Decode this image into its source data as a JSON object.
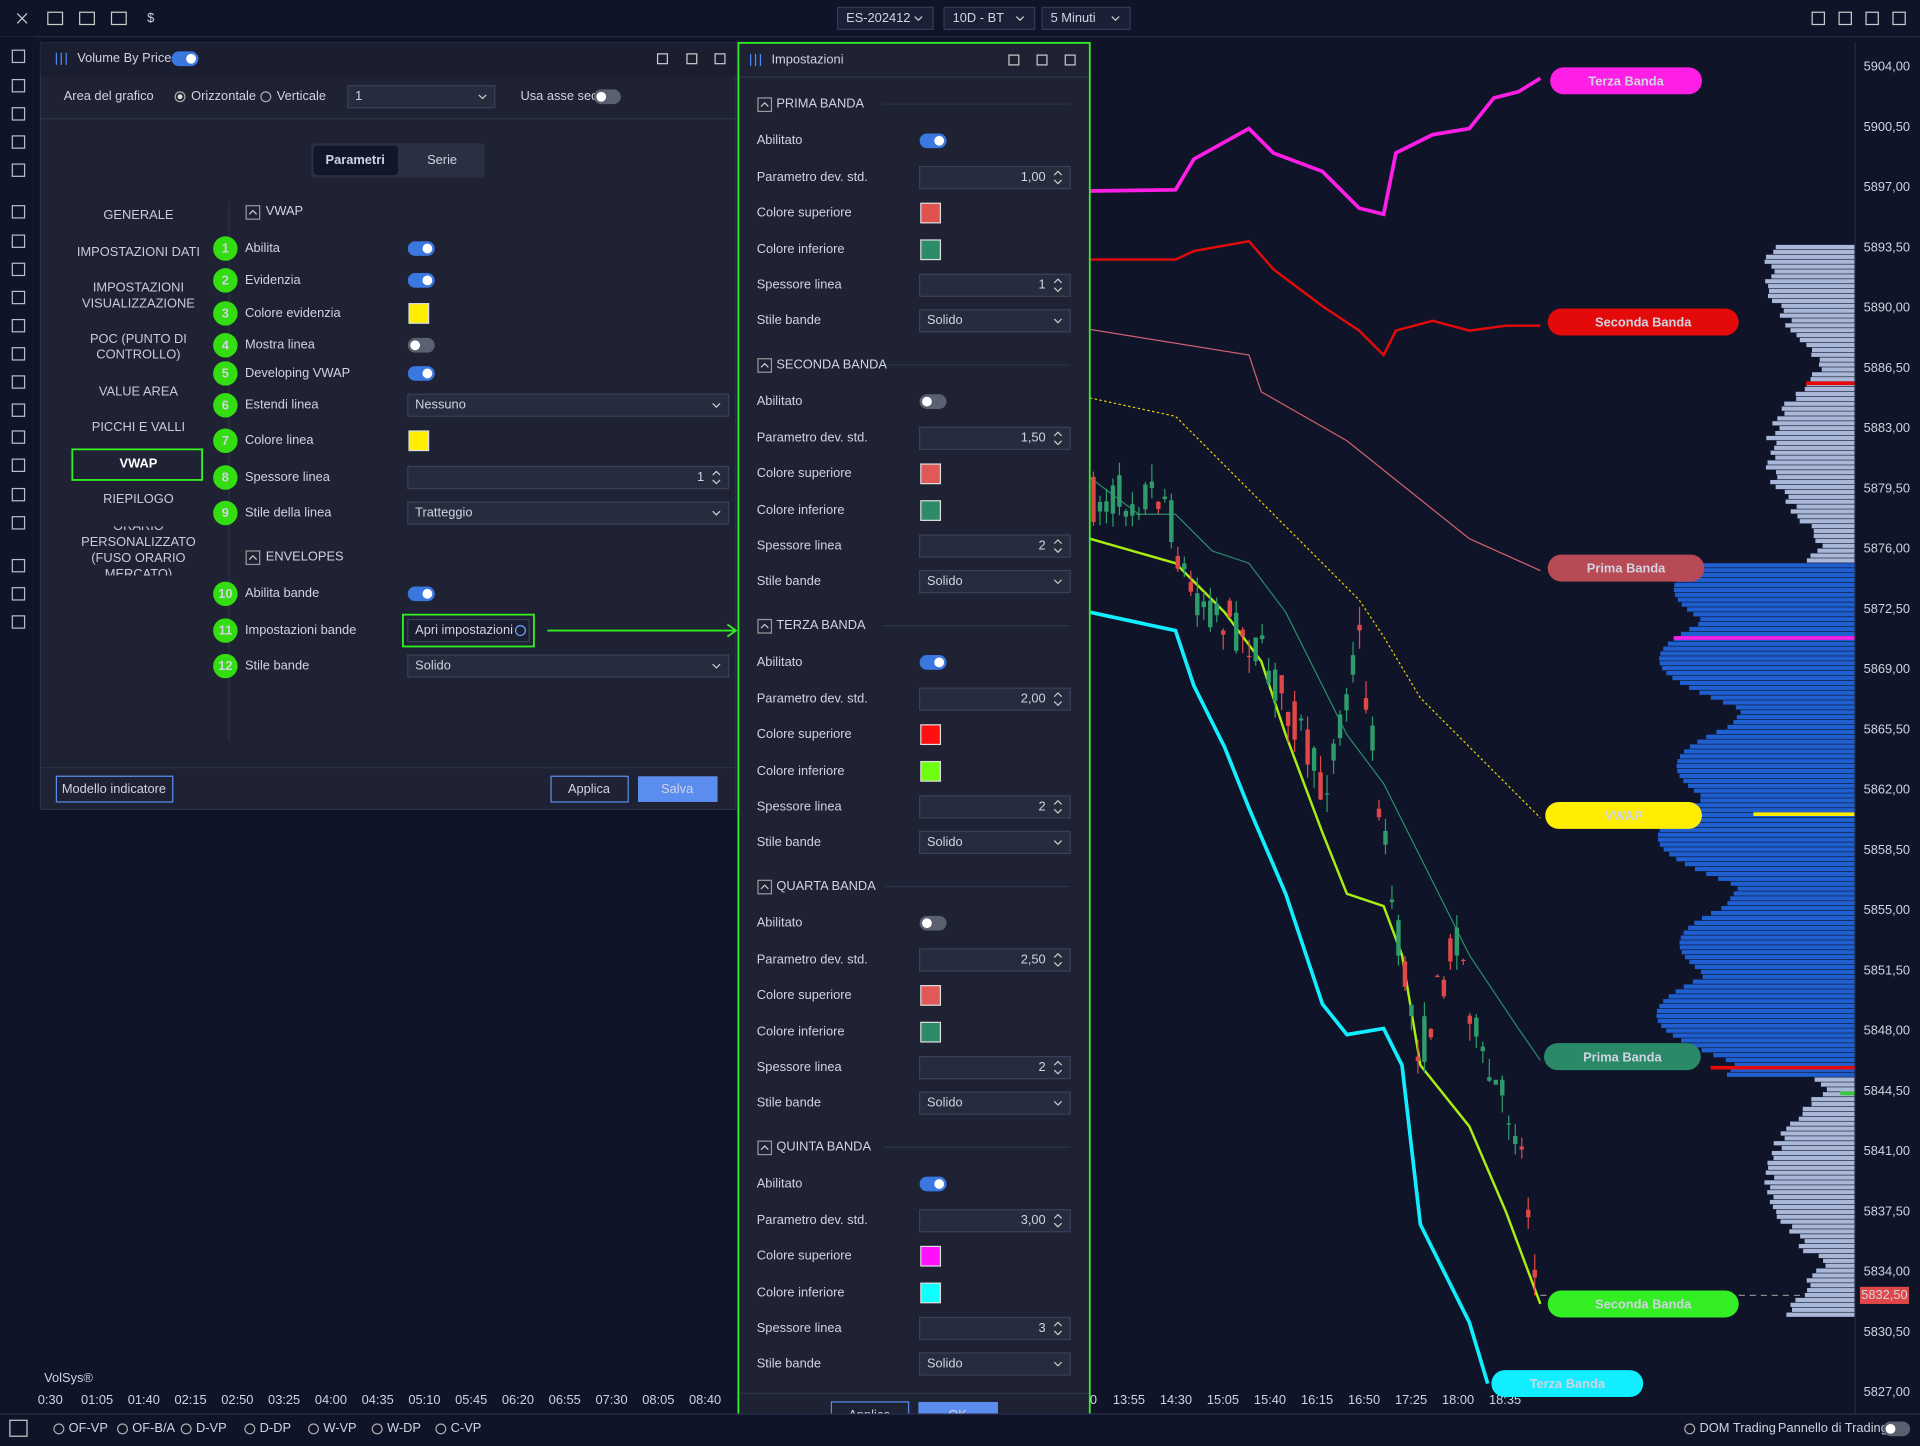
{
  "toolbar": {
    "currency": "$",
    "symbol": "ES-202412",
    "range": "10D - BT",
    "interval": "5 Minuti"
  },
  "indicator_window": {
    "title": "Volume By Price",
    "active": true,
    "area_label": "Area del grafico",
    "orientation": [
      "Orizzontale",
      "Verticale"
    ],
    "selected_orientation": 0,
    "area_value": "1",
    "secondary_axis_label": "Usa asse sec.",
    "secondary_axis": false,
    "tabs": [
      "Parametri",
      "Serie"
    ],
    "active_tab": 0,
    "nav": [
      "GENERALE",
      "IMPOSTAZIONI DATI",
      "IMPOSTAZIONI VISUALIZZAZIONE",
      "POC (PUNTO DI CONTROLLO)",
      "VALUE AREA",
      "PICCHI E VALLI",
      "VWAP",
      "RIEPILOGO",
      "ORARIO PERSONALIZZATO (FUSO ORARIO MERCATO)"
    ],
    "active_nav": 6,
    "sections": [
      {
        "title": "VWAP",
        "rows": [
          {
            "number": "1",
            "label": "Abilita",
            "control": "toggle",
            "on": true
          },
          {
            "number": "2",
            "label": "Evidenzia",
            "control": "toggle",
            "on": true
          },
          {
            "number": "3",
            "label": "Colore evidenzia",
            "control": "color",
            "color": "#ffee00"
          },
          {
            "number": "4",
            "label": "Mostra linea",
            "control": "toggle",
            "on": false
          },
          {
            "number": "5",
            "label": "Developing VWAP",
            "control": "toggle",
            "on": true
          },
          {
            "number": "6",
            "label": "Estendi linea",
            "control": "dropdown",
            "value": "Nessuno"
          },
          {
            "number": "7",
            "label": "Colore linea",
            "control": "color",
            "color": "#ffee00"
          },
          {
            "number": "8",
            "label": "Spessore linea",
            "control": "spinner",
            "value": "1"
          },
          {
            "number": "9",
            "label": "Stile della linea",
            "control": "dropdown",
            "value": "Tratteggio"
          }
        ]
      },
      {
        "title": "ENVELOPES",
        "rows": [
          {
            "number": "10",
            "label": "Abilita bande",
            "control": "toggle",
            "on": true
          },
          {
            "number": "11",
            "label": "Impostazioni bande",
            "control": "button",
            "value": "Apri impostazioni"
          },
          {
            "number": "12",
            "label": "Stile bande",
            "control": "dropdown",
            "value": "Solido"
          }
        ]
      }
    ],
    "buttons": {
      "template": "Modello indicatore",
      "apply": "Applica",
      "save": "Salva"
    }
  },
  "settings_window": {
    "title": "Impostazioni",
    "bands": [
      {
        "title": "PRIMA BANDA",
        "enabled_label": "Abilitato",
        "enabled": true,
        "stddev_label": "Parametro dev. std.",
        "stddev": "1,00",
        "upper_label": "Colore superiore",
        "upper_color": "#e0524e",
        "lower_label": "Colore inferiore",
        "lower_color": "#2e8b6a",
        "width_label": "Spessore linea",
        "width": "1",
        "style_label": "Stile bande",
        "style": "Solido"
      },
      {
        "title": "SECONDA BANDA",
        "enabled_label": "Abilitato",
        "enabled": false,
        "stddev_label": "Parametro dev. std.",
        "stddev": "1,50",
        "upper_label": "Colore superiore",
        "upper_color": "#e05858",
        "lower_label": "Colore inferiore",
        "lower_color": "#2e8b6a",
        "width_label": "Spessore linea",
        "width": "2",
        "style_label": "Stile bande",
        "style": "Solido"
      },
      {
        "title": "TERZA BANDA",
        "enabled_label": "Abilitato",
        "enabled": true,
        "stddev_label": "Parametro dev. std.",
        "stddev": "2,00",
        "upper_label": "Colore superiore",
        "upper_color": "#ff1010",
        "lower_label": "Colore inferiore",
        "lower_color": "#6eff10",
        "width_label": "Spessore linea",
        "width": "2",
        "style_label": "Stile bande",
        "style": "Solido"
      },
      {
        "title": "QUARTA BANDA",
        "enabled_label": "Abilitato",
        "enabled": false,
        "stddev_label": "Parametro dev. std.",
        "stddev": "2,50",
        "upper_label": "Colore superiore",
        "upper_color": "#e05858",
        "lower_label": "Colore inferiore",
        "lower_color": "#2e8b6a",
        "width_label": "Spessore linea",
        "width": "2",
        "style_label": "Stile bande",
        "style": "Solido"
      },
      {
        "title": "QUINTA BANDA",
        "enabled_label": "Abilitato",
        "enabled": true,
        "stddev_label": "Parametro dev. std.",
        "stddev": "3,00",
        "upper_label": "Colore superiore",
        "upper_color": "#ff10ff",
        "lower_label": "Colore inferiore",
        "lower_color": "#10ffff",
        "width_label": "Spessore linea",
        "width": "3",
        "style_label": "Stile bande",
        "style": "Solido"
      }
    ],
    "buttons": {
      "apply": "Applica",
      "ok": "OK"
    }
  },
  "chart": {
    "watermark": "VolSys®",
    "left_times": [
      "0:30",
      "01:05",
      "01:40",
      "02:15",
      "02:50",
      "03:25",
      "04:00",
      "04:35",
      "05:10",
      "05:45",
      "06:20",
      "06:55",
      "07:30",
      "08:05",
      "08:40"
    ],
    "times": [
      "0",
      "13:55",
      "14:30",
      "15:05",
      "15:40",
      "16:15",
      "16:50",
      "17:25",
      "18:00",
      "18:35"
    ],
    "prices": [
      "5904,00",
      "5900,50",
      "5897,00",
      "5893,50",
      "5890,00",
      "5886,50",
      "5883,00",
      "5879,50",
      "5876,00",
      "5872,50",
      "5869,00",
      "5865,50",
      "5862,00",
      "5858,50",
      "5855,00",
      "5851,50",
      "5848,00",
      "5844,50",
      "5841,00",
      "5837,50",
      "5834,00",
      "5830,50",
      "5827,00"
    ],
    "last_price": "5832,50",
    "band_labels": [
      {
        "text": "Terza Banda",
        "color": "#ff1ee6"
      },
      {
        "text": "Seconda Banda",
        "color": "#e50a0a"
      },
      {
        "text": "Prima Banda",
        "color": "#b84a55"
      },
      {
        "text": "VWAP",
        "color": "#ffee00"
      },
      {
        "text": "Prima Banda",
        "color": "#2a8a68"
      },
      {
        "text": "Seconda Banda",
        "color": "#33ee22"
      },
      {
        "text": "Terza Banda",
        "color": "#10eeff"
      }
    ]
  },
  "bottom_bar": {
    "studies": [
      "OF-VP",
      "OF-B/A",
      "D-VP",
      "D-DP",
      "W-VP",
      "W-DP",
      "C-VP"
    ],
    "dom": "DOM Trading",
    "panel": "Pannello di Trading",
    "panel_on": false
  }
}
